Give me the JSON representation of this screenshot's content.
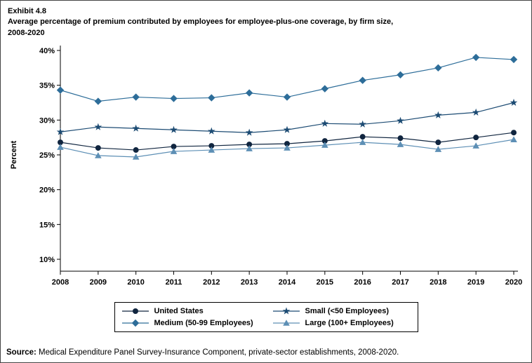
{
  "header": {
    "exhibit": "Exhibit 4.8",
    "title_line1": "Average percentage of premium contributed by employees for employee-plus-one coverage, by firm size,",
    "title_line2": "2008-2020"
  },
  "chart_data": {
    "type": "line",
    "x": [
      2008,
      2009,
      2010,
      2011,
      2012,
      2013,
      2014,
      2015,
      2016,
      2017,
      2018,
      2019,
      2020
    ],
    "xlabel": "",
    "ylabel": "Percent",
    "ylim": [
      10,
      40
    ],
    "yticks": [
      10,
      15,
      20,
      25,
      30,
      35,
      40
    ],
    "ytick_suffix": "%",
    "grid": false,
    "legend_position": "bottom",
    "series": [
      {
        "name": "United States",
        "marker": "circle",
        "color": "#10253f",
        "values": [
          26.8,
          26.0,
          25.7,
          26.2,
          26.3,
          26.5,
          26.6,
          27.0,
          27.6,
          27.4,
          26.8,
          27.5,
          28.2
        ]
      },
      {
        "name": "Small (<50 Employees)",
        "marker": "star",
        "color": "#1c4b73",
        "values": [
          28.3,
          29.0,
          28.8,
          28.6,
          28.4,
          28.2,
          28.6,
          29.5,
          29.4,
          29.9,
          30.7,
          31.1,
          32.5
        ]
      },
      {
        "name": "Medium (50-99 Employees)",
        "marker": "diamond",
        "color": "#2d6d99",
        "values": [
          34.3,
          32.7,
          33.3,
          33.1,
          33.2,
          33.9,
          33.3,
          34.5,
          35.7,
          36.5,
          37.5,
          39.0,
          38.7
        ]
      },
      {
        "name": "Large (100+ Employees)",
        "marker": "triangle",
        "color": "#5d8fb5",
        "values": [
          26.1,
          24.9,
          24.7,
          25.5,
          25.7,
          25.9,
          26.0,
          26.4,
          26.8,
          26.5,
          25.8,
          26.3,
          27.2
        ]
      }
    ],
    "legend_order": [
      "United States",
      "Small (<50 Employees)",
      "Medium (50-99 Employees)",
      "Large (100+ Employees)"
    ]
  },
  "source": {
    "label": "Source:",
    "text": " Medical Expenditure Panel Survey-Insurance Component, private-sector establishments, 2008-2020."
  }
}
